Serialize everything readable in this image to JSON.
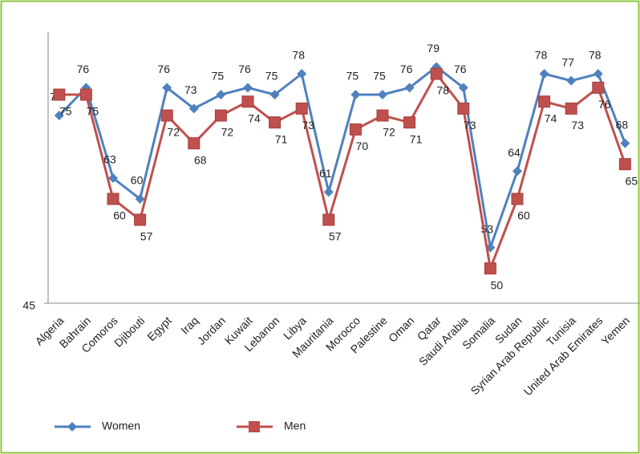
{
  "chart_data": {
    "type": "line",
    "categories": [
      "Algeria",
      "Bahrain",
      "Comoros",
      "Djibouti",
      "Egypt",
      "Iraq",
      "Jordan",
      "Kuwait",
      "Lebanon",
      "Libya",
      "Mauritania",
      "Morocco",
      "Palestine",
      "Oman",
      "Qatar",
      "Saudi Arabia",
      "Somalia",
      "Sudan",
      "Syrian Arab Republic",
      "Tunisia",
      "United Arab Emirates",
      "Yemen"
    ],
    "series": [
      {
        "name": "Women",
        "color": "#4f81bd",
        "values": [
          72,
          76,
          63,
          60,
          76,
          73,
          75,
          76,
          75,
          78,
          61,
          75,
          75,
          76,
          79,
          76,
          53,
          64,
          78,
          77,
          78,
          68
        ]
      },
      {
        "name": "Men",
        "color": "#c0504d",
        "values": [
          75,
          75,
          60,
          57,
          72,
          68,
          72,
          74,
          71,
          73,
          57,
          70,
          72,
          71,
          78,
          73,
          50,
          60,
          74,
          73,
          76,
          65
        ]
      }
    ],
    "ylim": [
      45,
      84
    ],
    "yticks": [
      45
    ]
  }
}
